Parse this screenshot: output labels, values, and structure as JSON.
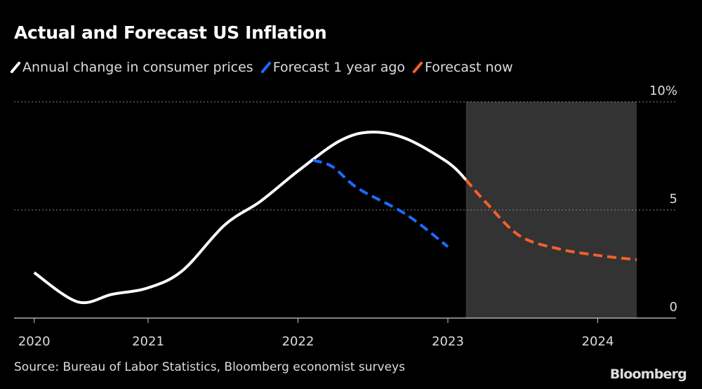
{
  "chart_data": {
    "type": "line",
    "title": "Actual and Forecast US Inflation",
    "xlabel": "",
    "ylabel": "",
    "xlim": [
      2020.24,
      2024.5
    ],
    "ylim": [
      0,
      10
    ],
    "x_ticks": [
      2020,
      2021,
      2022,
      2023,
      2024
    ],
    "x_tick_labels": [
      "2020",
      "2021",
      "2022",
      "2023",
      "2024"
    ],
    "y_ticks": [
      0,
      5,
      10
    ],
    "y_tick_labels": [
      "0",
      "5",
      "10%"
    ],
    "grid": "horizontal dotted",
    "legend_position": "top-left",
    "shaded_region": {
      "x": [
        2023.12,
        2024.26
      ],
      "color": "#333333"
    },
    "series": [
      {
        "name": "Annual change in consumer prices",
        "color": "#ffffff",
        "style": "solid",
        "x": [
          2020.24,
          2020.53,
          2020.76,
          2021.0,
          2021.23,
          2021.51,
          2021.75,
          2022.0,
          2022.28,
          2022.49,
          2022.72,
          2023.0,
          2023.12
        ],
        "y": [
          2.1,
          0.75,
          1.1,
          1.4,
          2.2,
          4.3,
          5.4,
          6.8,
          8.2,
          8.6,
          8.3,
          7.2,
          6.4
        ]
      },
      {
        "name": "Forecast 1 year ago",
        "color": "#1a6cff",
        "style": "dashed",
        "x": [
          2022.1,
          2022.23,
          2022.4,
          2022.72,
          2023.0
        ],
        "y": [
          7.3,
          7.0,
          6.0,
          4.8,
          3.3
        ]
      },
      {
        "name": "Forecast now",
        "color": "#f4602a",
        "style": "dashed",
        "x": [
          2023.12,
          2023.26,
          2023.48,
          2023.74,
          2024.0,
          2024.26
        ],
        "y": [
          6.4,
          5.3,
          3.8,
          3.2,
          2.9,
          2.7
        ]
      }
    ]
  },
  "source": "Source: Bureau of Labor Statistics, Bloomberg economist surveys",
  "logo": "Bloomberg"
}
